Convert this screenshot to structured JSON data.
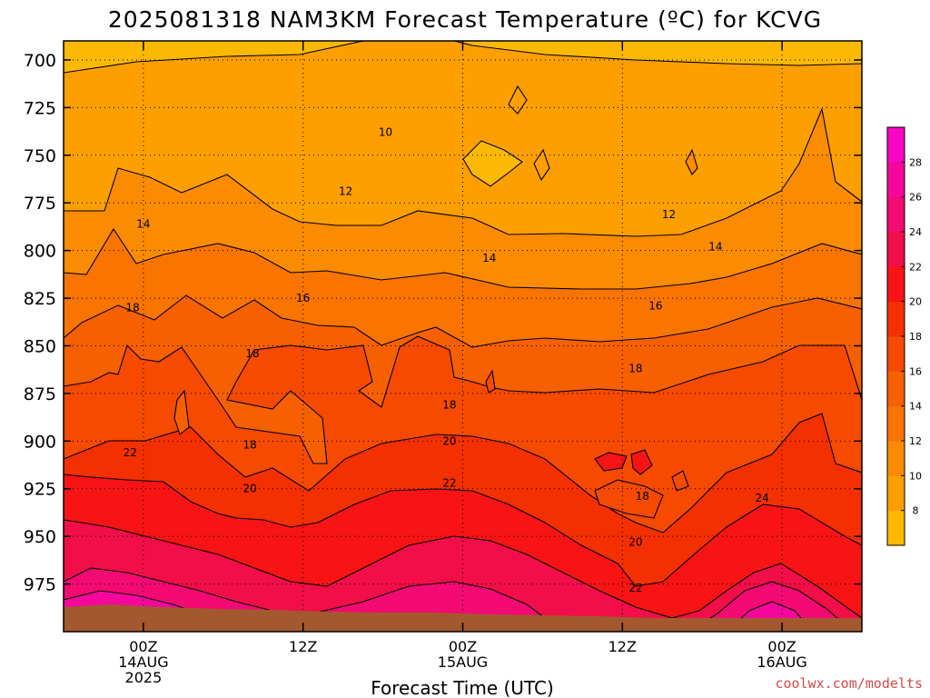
{
  "chart_data": {
    "type": "heatmap",
    "title": "2025081318 NAM3KM Forecast Temperature (ºC) for KCVG",
    "xlabel": "Forecast Time (UTC)",
    "ylabel": "",
    "y_ticks": [
      700,
      725,
      750,
      775,
      800,
      825,
      850,
      875,
      900,
      925,
      950,
      975
    ],
    "ylim": [
      1000,
      690
    ],
    "y_axis_inverted": true,
    "x_ticks": [
      {
        "label": "00Z",
        "date": "14AUG",
        "year": "2025",
        "hour": 6
      },
      {
        "label": "12Z",
        "date": "",
        "year": "",
        "hour": 18
      },
      {
        "label": "00Z",
        "date": "15AUG",
        "year": "",
        "hour": 30
      },
      {
        "label": "12Z",
        "date": "",
        "year": "",
        "hour": 42
      },
      {
        "label": "00Z",
        "date": "16AUG",
        "year": "",
        "hour": 54
      }
    ],
    "xlim": [
      0,
      60
    ],
    "grid": true,
    "colorbar": {
      "ticks": [
        8,
        10,
        12,
        14,
        16,
        18,
        20,
        22,
        24,
        26,
        28
      ],
      "colors": [
        "#fcb904",
        "#fd9f00",
        "#fb8b00",
        "#f97400",
        "#f76000",
        "#f54a00",
        "#f43000",
        "#f81414",
        "#f20e48",
        "#f30a72",
        "#f6079c",
        "#f707c4"
      ]
    },
    "contour_labels": [
      {
        "value": "10",
        "x": 24.2,
        "y": 738
      },
      {
        "value": "12",
        "x": 21.2,
        "y": 769
      },
      {
        "value": "12",
        "x": 45.5,
        "y": 781
      },
      {
        "value": "14",
        "x": 6.0,
        "y": 786
      },
      {
        "value": "14",
        "x": 32.0,
        "y": 804
      },
      {
        "value": "14",
        "x": 49.0,
        "y": 798
      },
      {
        "value": "16",
        "x": 18.0,
        "y": 825
      },
      {
        "value": "16",
        "x": 44.5,
        "y": 829
      },
      {
        "value": "18",
        "x": 5.2,
        "y": 830
      },
      {
        "value": "18",
        "x": 14.2,
        "y": 854
      },
      {
        "value": "18",
        "x": 43.0,
        "y": 862
      },
      {
        "value": "18",
        "x": 29.0,
        "y": 881
      },
      {
        "value": "18",
        "x": 14.0,
        "y": 902
      },
      {
        "value": "18",
        "x": 43.5,
        "y": 929
      },
      {
        "value": "20",
        "x": 29.0,
        "y": 900
      },
      {
        "value": "20",
        "x": 14.0,
        "y": 925
      },
      {
        "value": "20",
        "x": 43.0,
        "y": 953
      },
      {
        "value": "22",
        "x": 5.0,
        "y": 906
      },
      {
        "value": "22",
        "x": 29.0,
        "y": 922
      },
      {
        "value": "22",
        "x": 43.0,
        "y": 977
      },
      {
        "value": "24",
        "x": 52.5,
        "y": 930
      }
    ],
    "surface_pressure_approx": 978
  },
  "credit": "coolwx.com/modelts"
}
